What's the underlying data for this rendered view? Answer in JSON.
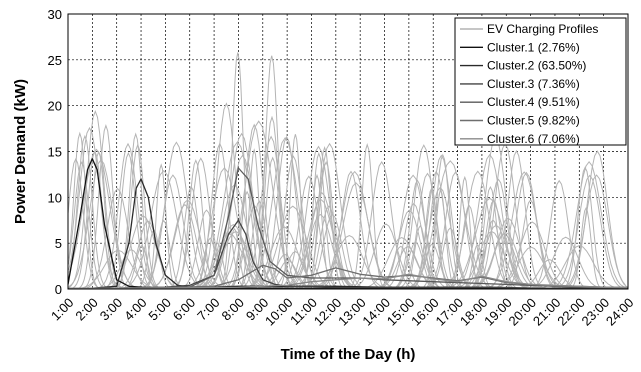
{
  "chart_data": {
    "type": "line",
    "xlabel": "Time of the Day (h)",
    "ylabel": "Power Demand (kW)",
    "ylim": [
      0,
      30
    ],
    "yticks": [
      0,
      5,
      10,
      15,
      20,
      25,
      30
    ],
    "x_tick_labels": [
      "1:00",
      "2:00",
      "3:00",
      "4:00",
      "5:00",
      "6:00",
      "7:00",
      "8:00",
      "9:00",
      "10:00",
      "11:00",
      "12:00",
      "13:00",
      "14:00",
      "15:00",
      "16:00",
      "17:00",
      "18:00",
      "19:00",
      "20:00",
      "21:00",
      "22:00",
      "23:00",
      "24:00"
    ],
    "xlim": [
      1,
      24
    ],
    "grid": true,
    "legend_position": "top-right",
    "series": [
      {
        "name": "EV Charging Profiles",
        "color": "#b4b4b4",
        "note": "many individual profiles (background)"
      },
      {
        "name": "Cluster.1 (2.76%)",
        "color": "#111111",
        "x": [
          1,
          1.5,
          1.8,
          2,
          2.2,
          2.5,
          3,
          3.5,
          4,
          5,
          6,
          7,
          8,
          9,
          10,
          12,
          14,
          16,
          18,
          20,
          22,
          24
        ],
        "y": [
          0.5,
          8,
          13,
          14.2,
          13,
          7,
          1,
          0.3,
          0.2,
          0.1,
          0.1,
          0.2,
          0.3,
          0.3,
          0.3,
          0.3,
          0.2,
          0.2,
          0.2,
          0.1,
          0.1,
          0.1
        ]
      },
      {
        "name": "Cluster.2 (63.50%)",
        "color": "#2a2a2a",
        "x": [
          1,
          2,
          3,
          3.5,
          3.8,
          4,
          4.3,
          4.6,
          5,
          5.5,
          6,
          7,
          8,
          10,
          12,
          14,
          16,
          18,
          20,
          22,
          24
        ],
        "y": [
          0.1,
          0.1,
          0.3,
          5,
          11,
          12,
          10,
          5,
          1.5,
          0.4,
          0.2,
          0.1,
          0.1,
          0.1,
          0.1,
          0.1,
          0.1,
          0.1,
          0.1,
          0.1,
          0.1
        ]
      },
      {
        "name": "Cluster.3 (7.36%)",
        "color": "#444444",
        "x": [
          1,
          3,
          5,
          6,
          7,
          7.6,
          8,
          8.3,
          8.6,
          9,
          9.5,
          10,
          11,
          12,
          14,
          16,
          18,
          20,
          22,
          24
        ],
        "y": [
          0.1,
          0.1,
          0.2,
          0.4,
          1.5,
          6,
          7.5,
          6,
          3,
          1,
          0.5,
          0.3,
          0.3,
          0.2,
          0.2,
          0.2,
          0.2,
          0.1,
          0.1,
          0.1
        ]
      },
      {
        "name": "Cluster.4 (9.51%)",
        "color": "#5a5a5a",
        "x": [
          1,
          3,
          6,
          7,
          7.6,
          8,
          8.4,
          8.8,
          9.3,
          10,
          11,
          12,
          13,
          14,
          16,
          18,
          20,
          22,
          24
        ],
        "y": [
          0.1,
          0.1,
          0.2,
          1.5,
          8,
          13.2,
          12,
          7,
          3,
          1.5,
          1.2,
          1.2,
          1.2,
          1,
          0.8,
          0.6,
          0.4,
          0.2,
          0.1
        ]
      },
      {
        "name": "Cluster.5 (9.82%)",
        "color": "#6e6e6e",
        "x": [
          1,
          4,
          7,
          8,
          9,
          9.5,
          10,
          11,
          12,
          13,
          14,
          15,
          16,
          17,
          18,
          19,
          20,
          21,
          22,
          23,
          24
        ],
        "y": [
          0.1,
          0.1,
          0.3,
          1,
          2.6,
          2.2,
          1.2,
          1.5,
          2.3,
          1.6,
          1.3,
          1.5,
          1.2,
          0.9,
          1.3,
          0.7,
          0.5,
          0.3,
          0.3,
          0.2,
          0.1
        ]
      },
      {
        "name": "Cluster.6 (7.06%)",
        "color": "#8a8a8a",
        "x": [
          1,
          5,
          8,
          10,
          11,
          12,
          13,
          14,
          15,
          16,
          17,
          18,
          19,
          20,
          21,
          22,
          23,
          24
        ],
        "y": [
          0.1,
          0.1,
          0.2,
          0.4,
          0.8,
          1,
          1.2,
          1.1,
          1.6,
          1.1,
          0.8,
          1.4,
          0.8,
          0.5,
          0.4,
          0.3,
          0.2,
          0.2
        ]
      }
    ]
  }
}
